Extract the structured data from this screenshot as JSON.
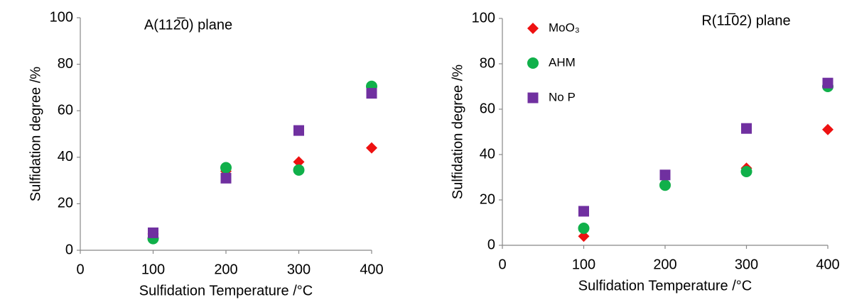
{
  "chart_data": [
    {
      "type": "scatter",
      "title": "A(112̅0) plane",
      "x_label": "Sulfidation Temperature /°C",
      "y_label": "Sulfidation degree /%",
      "xlim": [
        0,
        400
      ],
      "xticks": [
        0,
        100,
        200,
        300,
        400
      ],
      "ylim": [
        0,
        100
      ],
      "yticks": [
        0,
        20,
        40,
        60,
        80,
        100
      ],
      "grid": false,
      "legend": false,
      "series": [
        {
          "color": "#ee1111",
          "marker": "diamond",
          "x": [
            100,
            200,
            300,
            400
          ],
          "values": [
            7,
            34,
            38,
            44
          ]
        },
        {
          "color": "#10b04a",
          "marker": "circle",
          "x": [
            100,
            200,
            300,
            400
          ],
          "values": [
            5,
            35.5,
            34.5,
            70.5
          ]
        },
        {
          "color": "#7030a0",
          "marker": "square",
          "x": [
            100,
            200,
            300,
            400
          ],
          "values": [
            7.5,
            31,
            51.5,
            67.5
          ]
        }
      ]
    },
    {
      "type": "scatter",
      "title": "R(11̅02) plane",
      "x_label": "Sulfidation Temperature /°C",
      "y_label": "Sulfidation degree /%",
      "xlim": [
        0,
        400
      ],
      "xticks": [
        0,
        100,
        200,
        300,
        400
      ],
      "ylim": [
        0,
        100
      ],
      "yticks": [
        0,
        20,
        40,
        60,
        80,
        100
      ],
      "grid": false,
      "legend": "upper left",
      "series": [
        {
          "name": "MoO₃",
          "color": "#ee1111",
          "marker": "diamond",
          "x": [
            100,
            200,
            300,
            400
          ],
          "values": [
            4,
            27,
            34,
            51
          ]
        },
        {
          "name": "AHM",
          "color": "#10b04a",
          "marker": "circle",
          "x": [
            100,
            200,
            300,
            400
          ],
          "values": [
            7.5,
            26.5,
            32.5,
            70
          ]
        },
        {
          "name": "No P",
          "color": "#7030a0",
          "marker": "square",
          "x": [
            100,
            200,
            300,
            400
          ],
          "values": [
            15,
            31,
            51.5,
            71.5
          ]
        }
      ]
    }
  ]
}
